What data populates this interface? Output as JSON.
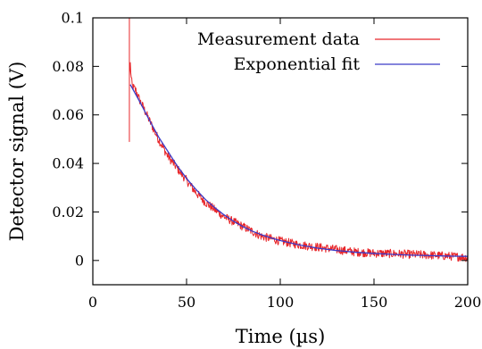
{
  "chart_data": {
    "type": "line",
    "xlabel": "Time (µs)",
    "ylabel": "Detector signal (V)",
    "xlim": [
      0,
      200
    ],
    "ylim": [
      -0.01,
      0.1
    ],
    "x_ticks": [
      0,
      50,
      100,
      150,
      200
    ],
    "y_ticks": [
      0,
      0.02,
      0.04,
      0.06,
      0.08,
      0.1
    ],
    "x_tick_labels": [
      "0",
      "50",
      "100",
      "150",
      "200"
    ],
    "y_tick_labels": [
      "0",
      "0.02",
      "0.04",
      "0.06",
      "0.08",
      "0.1"
    ],
    "grid": false,
    "legend_position": "top-right",
    "series": [
      {
        "name": "Measurement data",
        "color": "#e8262a",
        "style": "noisy",
        "x": [
          19.5,
          19.5,
          19.5,
          20,
          20.5,
          21,
          22,
          23,
          25,
          27,
          30,
          35,
          40,
          45,
          50,
          55,
          60,
          65,
          70,
          75,
          80,
          85,
          90,
          95,
          100,
          110,
          120,
          130,
          140,
          150,
          160,
          170,
          180,
          190,
          200
        ],
        "y": [
          0.1,
          0.049,
          0.076,
          0.081,
          0.075,
          0.072,
          0.071,
          0.07,
          0.066,
          0.063,
          0.058,
          0.05,
          0.043,
          0.038,
          0.033,
          0.028,
          0.024,
          0.021,
          0.018,
          0.016,
          0.014,
          0.012,
          0.01,
          0.009,
          0.008,
          0.0065,
          0.0055,
          0.0045,
          0.0035,
          0.003,
          0.0028,
          0.0025,
          0.0022,
          0.0018,
          0.0012
        ]
      },
      {
        "name": "Exponential fit",
        "color": "#3b3bc7",
        "x": [
          20,
          25,
          30,
          35,
          40,
          45,
          50,
          55,
          60,
          65,
          70,
          75,
          80,
          85,
          90,
          95,
          100,
          110,
          120,
          130,
          140,
          150,
          160,
          170,
          180,
          190,
          200
        ],
        "y": [
          0.0725,
          0.0655,
          0.0581,
          0.051,
          0.045,
          0.039,
          0.0338,
          0.0293,
          0.0252,
          0.0218,
          0.0188,
          0.0162,
          0.014,
          0.0121,
          0.0106,
          0.0093,
          0.0082,
          0.0064,
          0.0051,
          0.0041,
          0.0034,
          0.0029,
          0.0025,
          0.0022,
          0.002,
          0.0018,
          0.0017
        ]
      }
    ]
  }
}
